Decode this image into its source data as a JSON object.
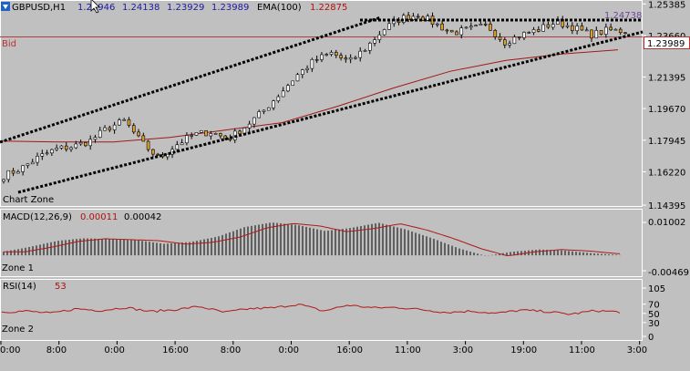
{
  "header": {
    "symbol": "GBPUSD,H1",
    "ohlc": [
      "1.23946",
      "1.24138",
      "1.23929",
      "1.23989"
    ],
    "ema_label": "EMA(100)",
    "ema_value": "1.22875",
    "bid_label": "Bid",
    "bid_price": "1.23989",
    "top_right_label": "1.24738"
  },
  "price_axis": [
    "1.25385",
    "1.23660",
    "1.21395",
    "1.19670",
    "1.17945",
    "1.16220",
    "1.14395"
  ],
  "main_watermark": "Chart Zone",
  "macd": {
    "label": "MACD(12,26,9)",
    "value1": "0.00011",
    "value2": "0.00042",
    "axis": [
      "0.01002",
      "-0.00469"
    ],
    "zone": "Zone 1"
  },
  "rsi": {
    "label": "RSI(14)",
    "value": "53",
    "axis": [
      "105",
      "70",
      "50",
      "30",
      "0"
    ],
    "zone": "Zone 2"
  },
  "time_axis": [
    "0:00",
    "8:00",
    "0:00",
    "16:00",
    "8:00",
    "0:00",
    "16:00",
    "11:00",
    "3:00",
    "19:00",
    "11:00",
    "3:00"
  ],
  "colors": {
    "background": "#c0c0c0",
    "bull_candle": "#ffffff",
    "bear_candle": "#e0a030",
    "ema": "#b02020",
    "bid_line": "#b04040",
    "trendline": "#000000"
  },
  "chart_data": [
    {
      "type": "candlestick",
      "title": "GBPUSD,H1",
      "ylim": [
        1.144,
        1.2545
      ],
      "series": [
        {
          "name": "EMA(100)",
          "values": [
            1.179,
            1.1785,
            1.1785,
            1.181,
            1.185,
            1.189,
            1.198,
            1.208,
            1.217,
            1.223,
            1.2265,
            1.2288
          ]
        }
      ],
      "close": [
        1.16,
        1.164,
        1.17,
        1.1745,
        1.176,
        1.179,
        1.186,
        1.19,
        1.178,
        1.1695,
        1.177,
        1.1825,
        1.184,
        1.18,
        1.187,
        1.195,
        1.205,
        1.215,
        1.223,
        1.227,
        1.222,
        1.23,
        1.24,
        1.246,
        1.248,
        1.243,
        1.238,
        1.24,
        1.242,
        1.233,
        1.237,
        1.24,
        1.244,
        1.241,
        1.237,
        1.2395,
        1.239
      ]
    },
    {
      "type": "bar",
      "title": "MACD(12,26,9)",
      "ylim": [
        -0.00469,
        0.01002
      ],
      "values": [
        0.0011,
        0.0026,
        0.0044,
        0.0052,
        0.0049,
        0.0046,
        0.0035,
        0.0041,
        0.0057,
        0.0086,
        0.01,
        0.0092,
        0.0074,
        0.0084,
        0.0099,
        0.0079,
        0.0052,
        0.0021,
        -0.0002,
        0.0011,
        0.0018,
        0.0014,
        0.0006,
        0.0001
      ]
    },
    {
      "type": "line",
      "title": "RSI(14)",
      "ylim": [
        0,
        105
      ],
      "values": [
        53,
        55,
        50,
        60,
        56,
        63,
        54,
        58,
        65,
        52,
        60,
        62,
        70,
        55,
        68,
        62,
        63,
        58,
        52,
        55,
        50,
        57,
        54,
        48,
        56,
        53
      ]
    }
  ]
}
